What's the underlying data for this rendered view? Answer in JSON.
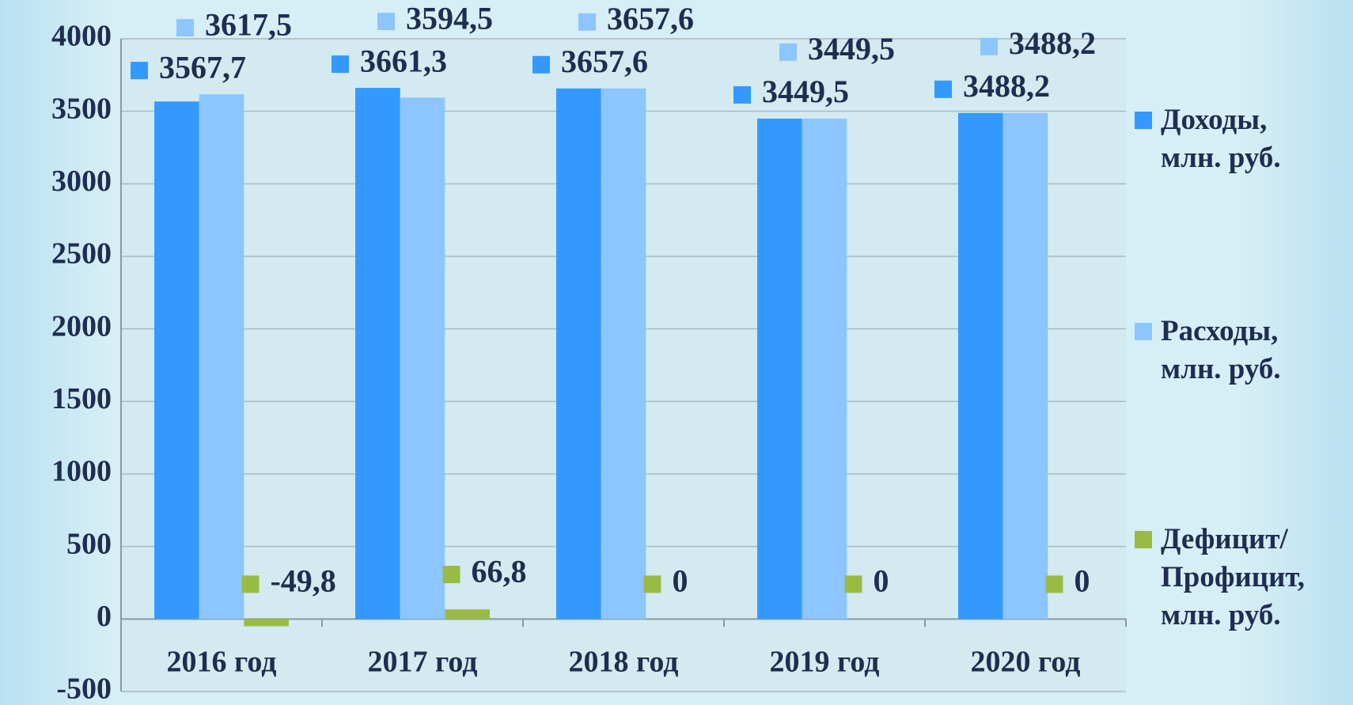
{
  "chart_data": {
    "type": "bar",
    "categories": [
      "2016 год",
      "2017 год",
      "2018 год",
      "2019 год",
      "2020 год"
    ],
    "series": [
      {
        "name": "Доходы, млн. руб.",
        "color": "#3399ff",
        "values": [
          3567.7,
          3661.3,
          3657.6,
          3449.5,
          3488.2
        ],
        "value_labels": [
          "3567,7",
          "3661,3",
          "3657,6",
          "3449,5",
          "3488,2"
        ]
      },
      {
        "name": "Расходы, млн. руб.",
        "color": "#8cc5ff",
        "values": [
          3617.5,
          3594.5,
          3657.6,
          3449.5,
          3488.2
        ],
        "value_labels": [
          "3617,5",
          "3594,5",
          "3657,6",
          "3449,5",
          "3488,2"
        ]
      },
      {
        "name": "Дефицит/ Профицит, млн. руб.",
        "color": "#99bb44",
        "values": [
          -49.8,
          66.8,
          0,
          0,
          0
        ],
        "value_labels": [
          "-49,8",
          "66,8",
          "0",
          "0",
          "0"
        ]
      }
    ],
    "ylim": [
      -500,
      4000
    ],
    "yticks": [
      -500,
      0,
      500,
      1000,
      1500,
      2000,
      2500,
      3000,
      3500,
      4000
    ],
    "grid": true,
    "legend": "right"
  }
}
